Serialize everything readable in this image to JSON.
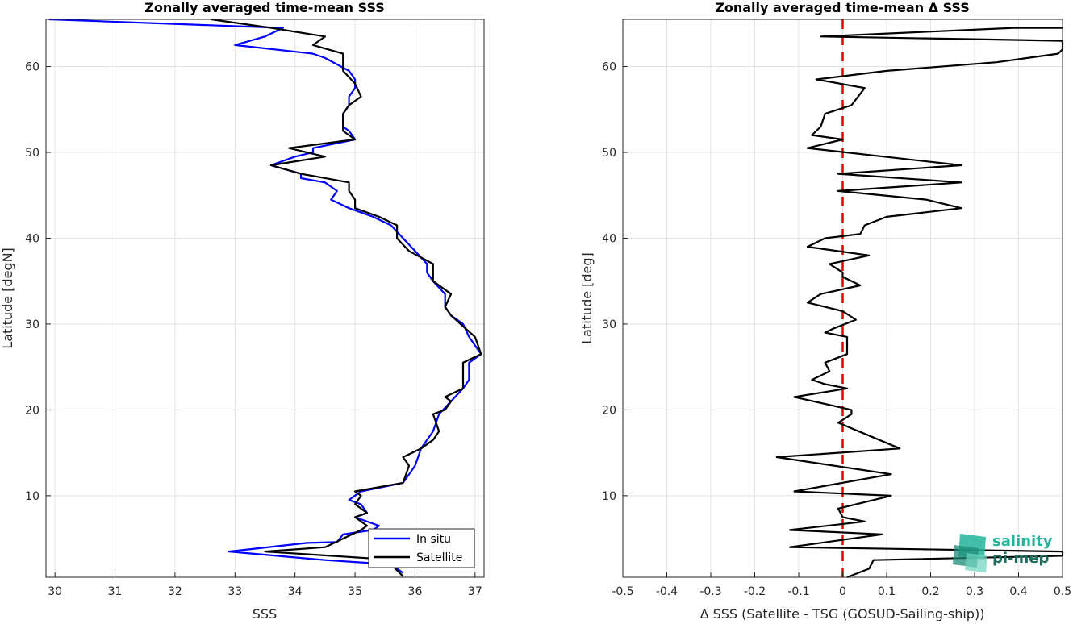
{
  "chart_data": [
    {
      "type": "line",
      "title": "Zonally averaged time-mean SSS",
      "xlabel": "SSS",
      "ylabel": "Latitude [degN]",
      "xlim": [
        29.85,
        37.15
      ],
      "ylim": [
        0.5,
        65.5
      ],
      "xticks": [
        30,
        31,
        32,
        33,
        34,
        35,
        36,
        37
      ],
      "yticks": [
        10,
        20,
        30,
        40,
        50,
        60
      ],
      "grid": true,
      "legend": "bottom-right",
      "series": [
        {
          "name": "In situ",
          "color": "#0000ff",
          "points": [
            [
              35.8,
              1
            ],
            [
              35.6,
              2
            ],
            [
              34.5,
              2.5
            ],
            [
              32.9,
              3.5
            ],
            [
              34.2,
              4.5
            ],
            [
              34.7,
              4.6
            ],
            [
              34.8,
              5.5
            ],
            [
              35.3,
              6
            ],
            [
              35.4,
              6.5
            ],
            [
              35.0,
              7.5
            ],
            [
              35.2,
              8
            ],
            [
              35.1,
              9
            ],
            [
              34.9,
              9.5
            ],
            [
              35.1,
              10.5
            ],
            [
              35.8,
              11.5
            ],
            [
              36.0,
              13.5
            ],
            [
              36.1,
              15.5
            ],
            [
              36.3,
              17.5
            ],
            [
              36.4,
              19.5
            ],
            [
              36.6,
              21
            ],
            [
              36.8,
              22.5
            ],
            [
              36.9,
              23.5
            ],
            [
              36.9,
              25.5
            ],
            [
              37.1,
              26.5
            ],
            [
              36.9,
              28.5
            ],
            [
              36.8,
              30
            ],
            [
              36.6,
              31
            ],
            [
              36.5,
              32
            ],
            [
              36.5,
              33.5
            ],
            [
              36.3,
              35
            ],
            [
              36.2,
              36
            ],
            [
              36.2,
              37
            ],
            [
              36.0,
              38.5
            ],
            [
              35.8,
              40
            ],
            [
              35.6,
              41.5
            ],
            [
              35.3,
              42.5
            ],
            [
              34.9,
              43.5
            ],
            [
              34.6,
              44.5
            ],
            [
              34.7,
              45.5
            ],
            [
              34.5,
              46.5
            ],
            [
              34.1,
              47
            ],
            [
              34.1,
              47.5
            ],
            [
              33.6,
              48.5
            ],
            [
              34.0,
              49.5
            ],
            [
              34.3,
              50
            ],
            [
              34.3,
              50.5
            ],
            [
              35.0,
              51.5
            ],
            [
              34.9,
              52.5
            ],
            [
              34.8,
              53
            ],
            [
              34.8,
              54.5
            ],
            [
              34.9,
              55.5
            ],
            [
              34.9,
              56.5
            ],
            [
              35.0,
              57.5
            ],
            [
              35.0,
              58.5
            ],
            [
              34.9,
              59.5
            ],
            [
              34.5,
              61
            ],
            [
              34.3,
              61.5
            ],
            [
              33.0,
              62.5
            ],
            [
              33.5,
              63.5
            ],
            [
              33.8,
              64.5
            ],
            [
              29.9,
              65.5
            ]
          ]
        },
        {
          "name": "Satellite",
          "color": "#000000",
          "points": [
            [
              35.8,
              0.6
            ],
            [
              35.6,
              2
            ],
            [
              35.7,
              2.5
            ],
            [
              33.5,
              3.5
            ],
            [
              34.5,
              4
            ],
            [
              34.8,
              5
            ],
            [
              35.1,
              6
            ],
            [
              35.2,
              6.5
            ],
            [
              35.0,
              7.5
            ],
            [
              35.2,
              8
            ],
            [
              35.0,
              9
            ],
            [
              35.1,
              10
            ],
            [
              35.0,
              10.5
            ],
            [
              35.8,
              11.5
            ],
            [
              35.9,
              13.5
            ],
            [
              35.8,
              14.5
            ],
            [
              36.1,
              15.5
            ],
            [
              36.3,
              16.5
            ],
            [
              36.4,
              17.5
            ],
            [
              36.3,
              19.5
            ],
            [
              36.5,
              20
            ],
            [
              36.6,
              21
            ],
            [
              36.5,
              21.5
            ],
            [
              36.8,
              22.5
            ],
            [
              36.8,
              23.5
            ],
            [
              36.8,
              25.5
            ],
            [
              37.1,
              26.5
            ],
            [
              37.0,
              28.5
            ],
            [
              36.6,
              31
            ],
            [
              36.5,
              32
            ],
            [
              36.6,
              33.5
            ],
            [
              36.3,
              35
            ],
            [
              36.3,
              36
            ],
            [
              36.3,
              37
            ],
            [
              35.9,
              38.5
            ],
            [
              35.7,
              40
            ],
            [
              35.7,
              41.5
            ],
            [
              35.4,
              42.5
            ],
            [
              35.0,
              43.5
            ],
            [
              35.0,
              44.5
            ],
            [
              34.9,
              45.5
            ],
            [
              34.9,
              46.5
            ],
            [
              34.1,
              47.5
            ],
            [
              33.6,
              48.5
            ],
            [
              34.5,
              49.5
            ],
            [
              33.9,
              50.5
            ],
            [
              35.0,
              51.5
            ],
            [
              34.8,
              52.5
            ],
            [
              34.8,
              54.5
            ],
            [
              34.9,
              55.5
            ],
            [
              35.1,
              56.5
            ],
            [
              35.0,
              58
            ],
            [
              34.8,
              59.5
            ],
            [
              34.8,
              61.5
            ],
            [
              34.3,
              62.5
            ],
            [
              34.5,
              63.5
            ],
            [
              33.6,
              64.5
            ],
            [
              32.6,
              65.5
            ]
          ]
        }
      ]
    },
    {
      "type": "line",
      "title": "Zonally averaged time-mean Δ SSS",
      "xlabel": "Δ SSS (Satellite - TSG (GOSUD-Sailing-ship))",
      "ylabel": "Latitude [deg]",
      "xlim": [
        -0.5,
        0.5
      ],
      "ylim": [
        0.5,
        65.5
      ],
      "xticks": [
        -0.5,
        -0.4,
        -0.3,
        -0.2,
        -0.1,
        0,
        0.1,
        0.2,
        0.3,
        0.4,
        0.5
      ],
      "xtick_labels": [
        "-0.5",
        "-0.4",
        "-0.3",
        "-0.2",
        "-0.1",
        "0",
        "0.1",
        "0.2",
        "0.3",
        "0.4",
        "0.5"
      ],
      "yticks": [
        10,
        20,
        30,
        40,
        50,
        60
      ],
      "grid": true,
      "reference_line": {
        "x": 0,
        "color": "#e00000"
      },
      "series": [
        {
          "color": "#000000",
          "points": [
            [
              0.01,
              0.5
            ],
            [
              0.06,
              1.5
            ],
            [
              0.07,
              2.5
            ],
            [
              0.5,
              3
            ],
            [
              0.5,
              3.5
            ],
            [
              -0.12,
              4
            ],
            [
              0.09,
              5.5
            ],
            [
              -0.12,
              6
            ],
            [
              0.05,
              7
            ],
            [
              0.0,
              7.5
            ],
            [
              -0.01,
              8.5
            ],
            [
              0.11,
              10
            ],
            [
              -0.11,
              10.5
            ],
            [
              0.11,
              12.5
            ],
            [
              -0.15,
              14.5
            ],
            [
              0.13,
              15.5
            ],
            [
              0.06,
              17
            ],
            [
              -0.01,
              18.5
            ],
            [
              0.02,
              19.5
            ],
            [
              0.02,
              20
            ],
            [
              -0.11,
              21.5
            ],
            [
              0.01,
              22.5
            ],
            [
              -0.04,
              23
            ],
            [
              -0.07,
              23.5
            ],
            [
              -0.03,
              24.5
            ],
            [
              -0.04,
              25.5
            ],
            [
              0.01,
              26.5
            ],
            [
              0.01,
              28.5
            ],
            [
              -0.04,
              29
            ],
            [
              -0.02,
              29.5
            ],
            [
              0.03,
              30.5
            ],
            [
              0.0,
              31.5
            ],
            [
              -0.08,
              32.5
            ],
            [
              -0.05,
              33.5
            ],
            [
              0.04,
              34.5
            ],
            [
              0.0,
              35.5
            ],
            [
              0.0,
              36
            ],
            [
              -0.03,
              37
            ],
            [
              0.06,
              38
            ],
            [
              -0.08,
              39
            ],
            [
              -0.04,
              40
            ],
            [
              0.04,
              40.5
            ],
            [
              0.05,
              41.5
            ],
            [
              0.1,
              42.5
            ],
            [
              0.27,
              43.5
            ],
            [
              0.19,
              44.5
            ],
            [
              -0.01,
              45.5
            ],
            [
              0.27,
              46.5
            ],
            [
              -0.01,
              47.5
            ],
            [
              0.27,
              48.5
            ],
            [
              -0.08,
              50.5
            ],
            [
              0.0,
              51.5
            ],
            [
              -0.07,
              52
            ],
            [
              -0.05,
              53
            ],
            [
              -0.04,
              54.5
            ],
            [
              0.02,
              55.5
            ],
            [
              0.05,
              57.5
            ],
            [
              -0.06,
              58.5
            ],
            [
              0.1,
              59.5
            ],
            [
              0.35,
              60.5
            ],
            [
              0.49,
              61.5
            ],
            [
              0.5,
              62
            ],
            [
              0.5,
              63
            ],
            [
              -0.05,
              63.5
            ],
            [
              0.39,
              64.5
            ],
            [
              0.5,
              64.5
            ]
          ]
        }
      ]
    }
  ],
  "legend": {
    "items": [
      {
        "label": "In situ",
        "color": "#0000ff"
      },
      {
        "label": "Satellite",
        "color": "#000000"
      }
    ]
  },
  "logo": {
    "line1": "salinity",
    "line2": "pi-mep"
  }
}
